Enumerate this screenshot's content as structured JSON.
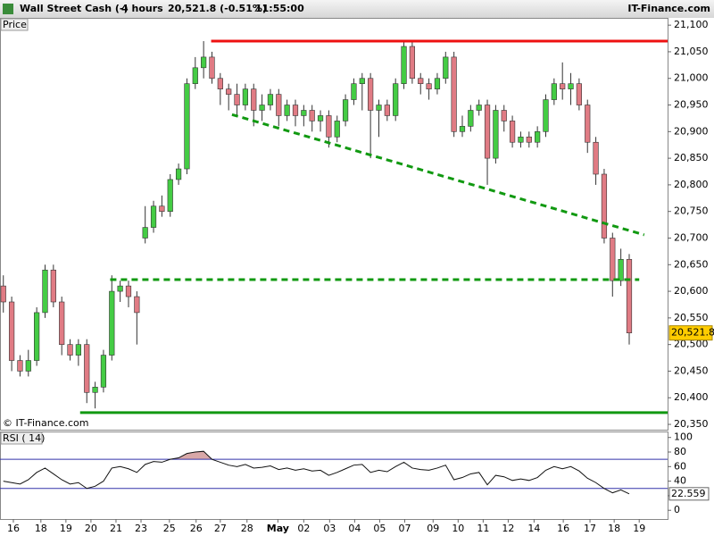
{
  "header": {
    "title": "Wall Street Cash (-)",
    "period": "4 hours",
    "quote": "20,521.8 (-0.51%)",
    "time": "11:55:00",
    "brand": "IT-Finance.com",
    "watermark": "© IT-Finance.com"
  },
  "chart_data": [
    {
      "type": "candlestick",
      "label": "Price",
      "ohlc": [
        [
          20610,
          20630,
          20560,
          20580
        ],
        [
          20580,
          20590,
          20450,
          20470
        ],
        [
          20470,
          20480,
          20440,
          20450
        ],
        [
          20450,
          20490,
          20440,
          20470
        ],
        [
          20470,
          20570,
          20460,
          20560
        ],
        [
          20560,
          20650,
          20550,
          20640
        ],
        [
          20640,
          20650,
          20570,
          20580
        ],
        [
          20580,
          20590,
          20480,
          20500
        ],
        [
          20500,
          20510,
          20470,
          20480
        ],
        [
          20480,
          20510,
          20460,
          20500
        ],
        [
          20500,
          20510,
          20390,
          20410
        ],
        [
          20410,
          20430,
          20380,
          20420
        ],
        [
          20420,
          20490,
          20410,
          20480
        ],
        [
          20480,
          20630,
          20470,
          20600
        ],
        [
          20600,
          20620,
          20580,
          20610
        ],
        [
          20610,
          20620,
          20570,
          20590
        ],
        [
          20590,
          20600,
          20500,
          20560
        ],
        [
          20700,
          20760,
          20690,
          20720
        ],
        [
          20720,
          20770,
          20710,
          20760
        ],
        [
          20760,
          20780,
          20740,
          20750
        ],
        [
          20750,
          20820,
          20740,
          20810
        ],
        [
          20810,
          20840,
          20800,
          20830
        ],
        [
          20830,
          21000,
          20820,
          20990
        ],
        [
          20990,
          21040,
          20980,
          21020
        ],
        [
          21020,
          21070,
          21000,
          21040
        ],
        [
          21040,
          21050,
          20990,
          21000
        ],
        [
          21000,
          21010,
          20950,
          20980
        ],
        [
          20980,
          20990,
          20940,
          20970
        ],
        [
          20970,
          20990,
          20930,
          20950
        ],
        [
          20950,
          20990,
          20940,
          20980
        ],
        [
          20980,
          20990,
          20910,
          20940
        ],
        [
          20940,
          20970,
          20920,
          20950
        ],
        [
          20950,
          20980,
          20940,
          20970
        ],
        [
          20970,
          20980,
          20910,
          20930
        ],
        [
          20930,
          20960,
          20920,
          20950
        ],
        [
          20950,
          20960,
          20910,
          20930
        ],
        [
          20930,
          20950,
          20910,
          20940
        ],
        [
          20940,
          20950,
          20900,
          20920
        ],
        [
          20920,
          20940,
          20900,
          20930
        ],
        [
          20930,
          20940,
          20870,
          20890
        ],
        [
          20890,
          20930,
          20880,
          20920
        ],
        [
          20920,
          20970,
          20910,
          20960
        ],
        [
          20960,
          21000,
          20950,
          20990
        ],
        [
          20990,
          21010,
          20940,
          21000
        ],
        [
          21000,
          21010,
          20850,
          20940
        ],
        [
          20940,
          20960,
          20890,
          20950
        ],
        [
          20950,
          20960,
          20920,
          20930
        ],
        [
          20930,
          21000,
          20920,
          20990
        ],
        [
          20990,
          21070,
          20980,
          21060
        ],
        [
          21060,
          21070,
          20990,
          21000
        ],
        [
          21000,
          21010,
          20970,
          20990
        ],
        [
          20990,
          21000,
          20960,
          20980
        ],
        [
          20980,
          21010,
          20970,
          21000
        ],
        [
          21000,
          21050,
          20990,
          21040
        ],
        [
          21040,
          21050,
          20890,
          20900
        ],
        [
          20900,
          20930,
          20890,
          20910
        ],
        [
          20910,
          20950,
          20900,
          20940
        ],
        [
          20940,
          20960,
          20930,
          20950
        ],
        [
          20950,
          20960,
          20800,
          20850
        ],
        [
          20850,
          20950,
          20840,
          20940
        ],
        [
          20940,
          20950,
          20900,
          20920
        ],
        [
          20920,
          20930,
          20870,
          20880
        ],
        [
          20880,
          20900,
          20870,
          20890
        ],
        [
          20890,
          20900,
          20870,
          20880
        ],
        [
          20880,
          20910,
          20870,
          20900
        ],
        [
          20900,
          20970,
          20890,
          20960
        ],
        [
          20960,
          21000,
          20950,
          20990
        ],
        [
          20990,
          21030,
          20960,
          20980
        ],
        [
          20980,
          21010,
          20950,
          20990
        ],
        [
          20990,
          21000,
          20940,
          20950
        ],
        [
          20950,
          20960,
          20860,
          20880
        ],
        [
          20880,
          20890,
          20800,
          20820
        ],
        [
          20820,
          20830,
          20690,
          20700
        ],
        [
          20700,
          20710,
          20590,
          20620
        ],
        [
          20620,
          20680,
          20610,
          20660
        ],
        [
          20660,
          20670,
          20500,
          20521.8
        ]
      ],
      "up_color": "#44cc44",
      "down_color": "#e07b84",
      "last_label": {
        "value": 20521.8,
        "label": "20,521.8"
      },
      "lines": [
        {
          "color": "#ee1111",
          "style": "solid",
          "x": [
            24.9,
            79.6
          ],
          "y": [
            21070,
            21070
          ]
        },
        {
          "color": "#119911",
          "style": "dashed",
          "x": [
            27.4,
            76.8
          ],
          "y": [
            20932,
            20706
          ]
        },
        {
          "color": "#119911",
          "style": "dashed",
          "x": [
            12.8,
            76.2
          ],
          "y": [
            20622,
            20622
          ]
        },
        {
          "color": "#119911",
          "style": "solid",
          "x": [
            9.2,
            79.6
          ],
          "y": [
            20372,
            20372
          ]
        }
      ],
      "xlim": [
        -0.4,
        79.6
      ],
      "ylim": [
        20340,
        21112
      ],
      "yticks": [
        {
          "value": 20350,
          "label": "20,350"
        },
        {
          "value": 20400,
          "label": "20,400"
        },
        {
          "value": 20450,
          "label": "20,450"
        },
        {
          "value": 20500,
          "label": "20,500"
        },
        {
          "value": 20550,
          "label": "20,550"
        },
        {
          "value": 20600,
          "label": "20,600"
        },
        {
          "value": 20650,
          "label": "20,650"
        },
        {
          "value": 20700,
          "label": "20,700"
        },
        {
          "value": 20750,
          "label": "20,750"
        },
        {
          "value": 20800,
          "label": "20,800"
        },
        {
          "value": 20850,
          "label": "20,850"
        },
        {
          "value": 20900,
          "label": "20,900"
        },
        {
          "value": 20950,
          "label": "20,950"
        },
        {
          "value": 21000,
          "label": "21,000"
        },
        {
          "value": 21050,
          "label": "21,050"
        },
        {
          "value": 21100,
          "label": "21,100"
        }
      ],
      "xticks": [
        {
          "value": 1.2,
          "label": "16"
        },
        {
          "value": 4.5,
          "label": "18"
        },
        {
          "value": 7.5,
          "label": "19"
        },
        {
          "value": 10.5,
          "label": "20"
        },
        {
          "value": 13.5,
          "label": "21"
        },
        {
          "value": 16.5,
          "label": "23"
        },
        {
          "value": 19.9,
          "label": "25"
        },
        {
          "value": 23.1,
          "label": "26"
        },
        {
          "value": 26,
          "label": "27"
        },
        {
          "value": 29.2,
          "label": "28"
        },
        {
          "value": 32.9,
          "label": "May"
        },
        {
          "value": 36,
          "label": "02"
        },
        {
          "value": 39.1,
          "label": "03"
        },
        {
          "value": 42.1,
          "label": "04"
        },
        {
          "value": 45.1,
          "label": "05"
        },
        {
          "value": 48.1,
          "label": "07"
        },
        {
          "value": 51.5,
          "label": "09"
        },
        {
          "value": 54.5,
          "label": "10"
        },
        {
          "value": 57.5,
          "label": "11"
        },
        {
          "value": 60.5,
          "label": "12"
        },
        {
          "value": 63.6,
          "label": "14"
        },
        {
          "value": 67.1,
          "label": "16"
        },
        {
          "value": 70.3,
          "label": "17"
        },
        {
          "value": 73.2,
          "label": "18"
        },
        {
          "value": 76.2,
          "label": "19"
        }
      ]
    },
    {
      "type": "line",
      "label": "RSI ( 14)",
      "color": "#111111",
      "values": [
        40,
        38,
        36,
        42,
        52,
        58,
        50,
        42,
        36,
        38,
        30,
        33,
        40,
        58,
        60,
        57,
        52,
        63,
        67,
        66,
        70,
        72,
        78,
        80,
        81,
        70,
        66,
        62,
        60,
        63,
        58,
        59,
        61,
        56,
        58,
        55,
        57,
        54,
        55,
        48,
        52,
        57,
        62,
        63,
        52,
        55,
        53,
        60,
        66,
        58,
        56,
        55,
        58,
        62,
        42,
        45,
        50,
        52,
        35,
        48,
        46,
        41,
        43,
        41,
        45,
        55,
        60,
        57,
        60,
        54,
        44,
        38,
        30,
        24,
        28,
        22.559
      ],
      "last_label": {
        "value": 22.559,
        "label": "22.559"
      },
      "levels": [
        70,
        30
      ],
      "level_color": "#3333aa",
      "overbought_fill": "#d8a8a8",
      "xlim": [
        -0.4,
        79.6
      ],
      "ylim": [
        -12,
        107
      ],
      "yticks": [
        0,
        20,
        40,
        60,
        80,
        100
      ]
    }
  ]
}
